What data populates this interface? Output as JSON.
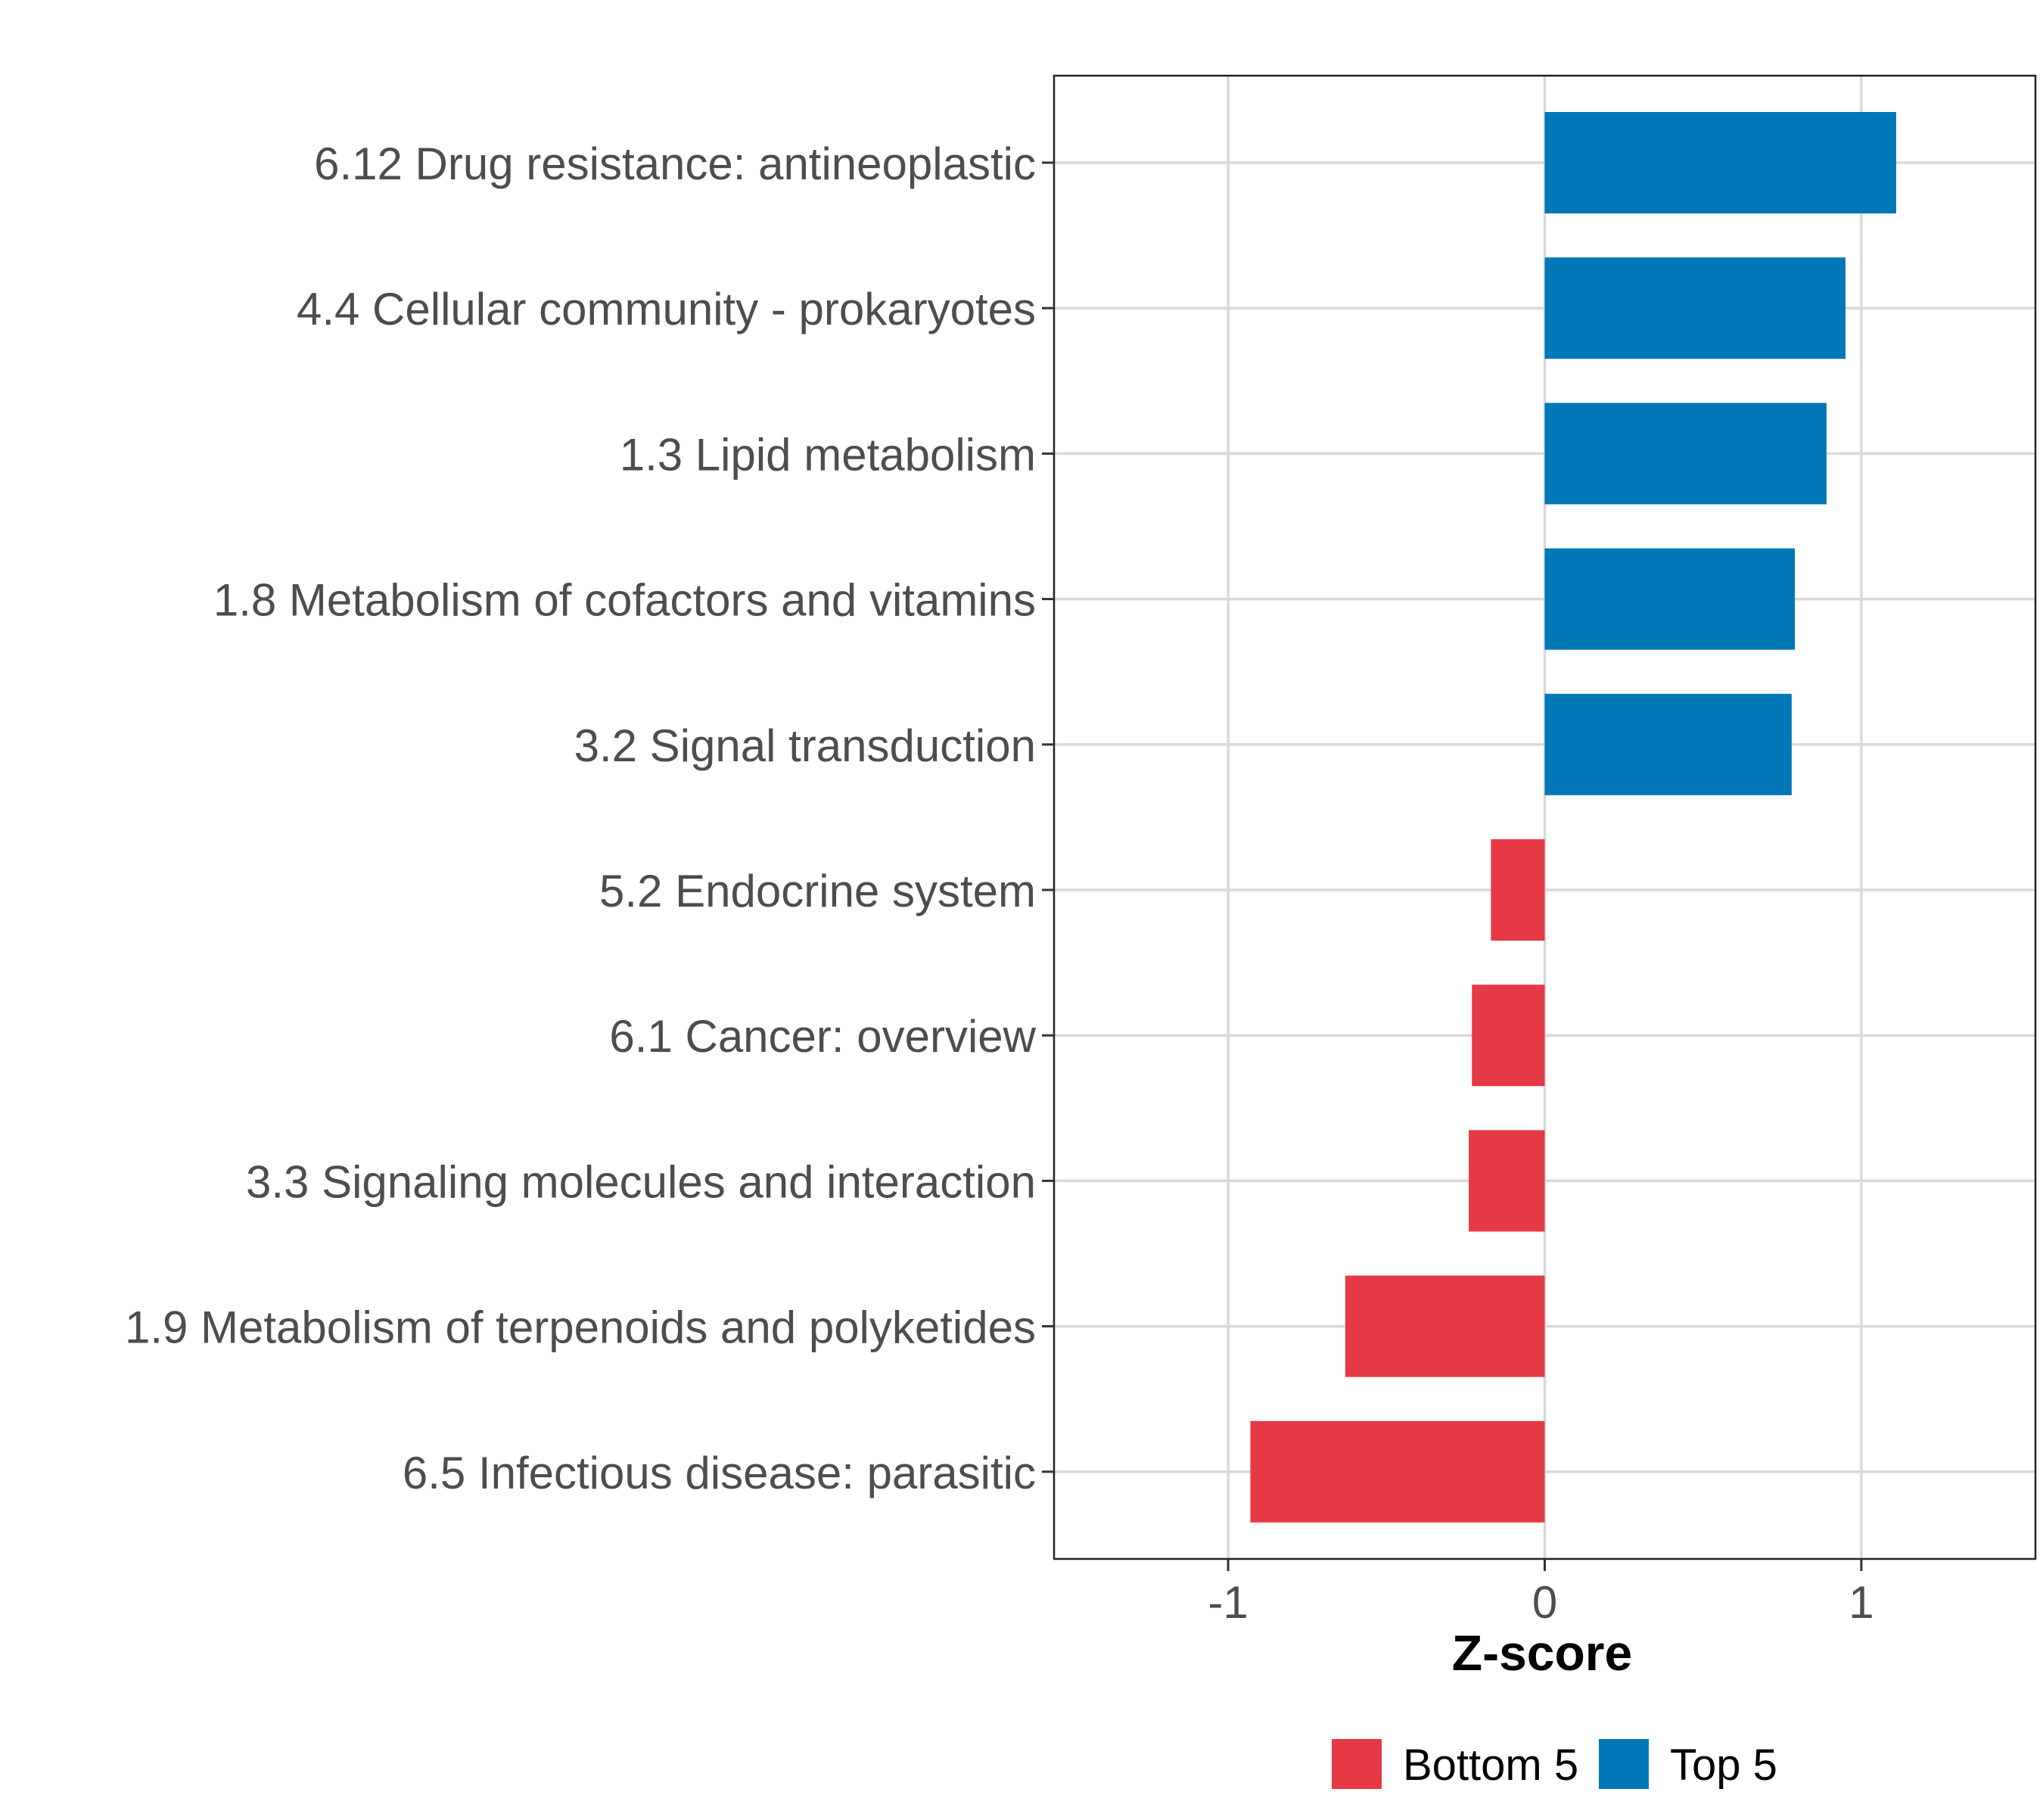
{
  "chart_data": {
    "type": "bar",
    "orientation": "horizontal",
    "title": "",
    "xlabel": "Z-score",
    "ylabel": "",
    "xlim": [
      -1.55,
      1.55
    ],
    "xticks": [
      -1,
      0,
      1
    ],
    "xtick_labels": [
      "-1",
      "0",
      "1"
    ],
    "grid": true,
    "legend_position": "bottom",
    "categories": [
      "6.12 Drug resistance: antineoplastic",
      "4.4 Cellular community - prokaryotes",
      "1.3 Lipid metabolism",
      "1.8 Metabolism of cofactors and vitamins",
      "3.2 Signal transduction",
      "5.2 Endocrine system",
      "6.1 Cancer: overview",
      "3.3 Signaling molecules and interaction",
      "1.9 Metabolism of terpenoids and polyketides",
      "6.5 Infectious disease: parasitic"
    ],
    "values": [
      1.11,
      0.95,
      0.89,
      0.79,
      0.78,
      -0.17,
      -0.23,
      -0.24,
      -0.63,
      -0.93
    ],
    "groups": [
      "Top 5",
      "Top 5",
      "Top 5",
      "Top 5",
      "Top 5",
      "Bottom 5",
      "Bottom 5",
      "Bottom 5",
      "Bottom 5",
      "Bottom 5"
    ],
    "legend": [
      {
        "name": "Bottom 5",
        "color": "#E63946"
      },
      {
        "name": "Top 5",
        "color": "#0077B6"
      }
    ]
  }
}
